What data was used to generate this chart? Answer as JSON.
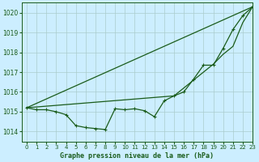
{
  "title": "Graphe pression niveau de la mer (hPa)",
  "background_color": "#cceeff",
  "grid_color": "#aacccc",
  "line_color": "#1a5c1a",
  "xlim": [
    -0.5,
    23
  ],
  "ylim": [
    1013.5,
    1020.5
  ],
  "yticks": [
    1014,
    1015,
    1016,
    1017,
    1018,
    1019,
    1020
  ],
  "xticks": [
    0,
    1,
    2,
    3,
    4,
    5,
    6,
    7,
    8,
    9,
    10,
    11,
    12,
    13,
    14,
    15,
    16,
    17,
    18,
    19,
    20,
    21,
    22,
    23
  ],
  "series1": [
    1015.2,
    1015.1,
    1015.1,
    1015.0,
    1014.85,
    1014.3,
    1014.2,
    1014.15,
    1014.1,
    1015.15,
    1015.1,
    1015.15,
    1015.05,
    1014.75,
    1015.55,
    1015.8,
    1016.0,
    1016.65,
    1017.35,
    1017.35,
    1018.2,
    1019.15,
    1019.85,
    1020.3
  ],
  "series2_x": [
    0,
    23
  ],
  "series2_y": [
    1015.2,
    1020.3
  ],
  "series3_x": [
    0,
    15,
    19,
    20,
    21,
    22,
    23
  ],
  "series3_y": [
    1015.2,
    1015.8,
    1017.4,
    1017.9,
    1018.3,
    1019.5,
    1020.3
  ],
  "marker": "+",
  "markersize": 3,
  "linewidth": 0.9,
  "xlabel_fontsize": 6.0,
  "tick_fontsize": 5.0,
  "ytick_fontsize": 5.5
}
